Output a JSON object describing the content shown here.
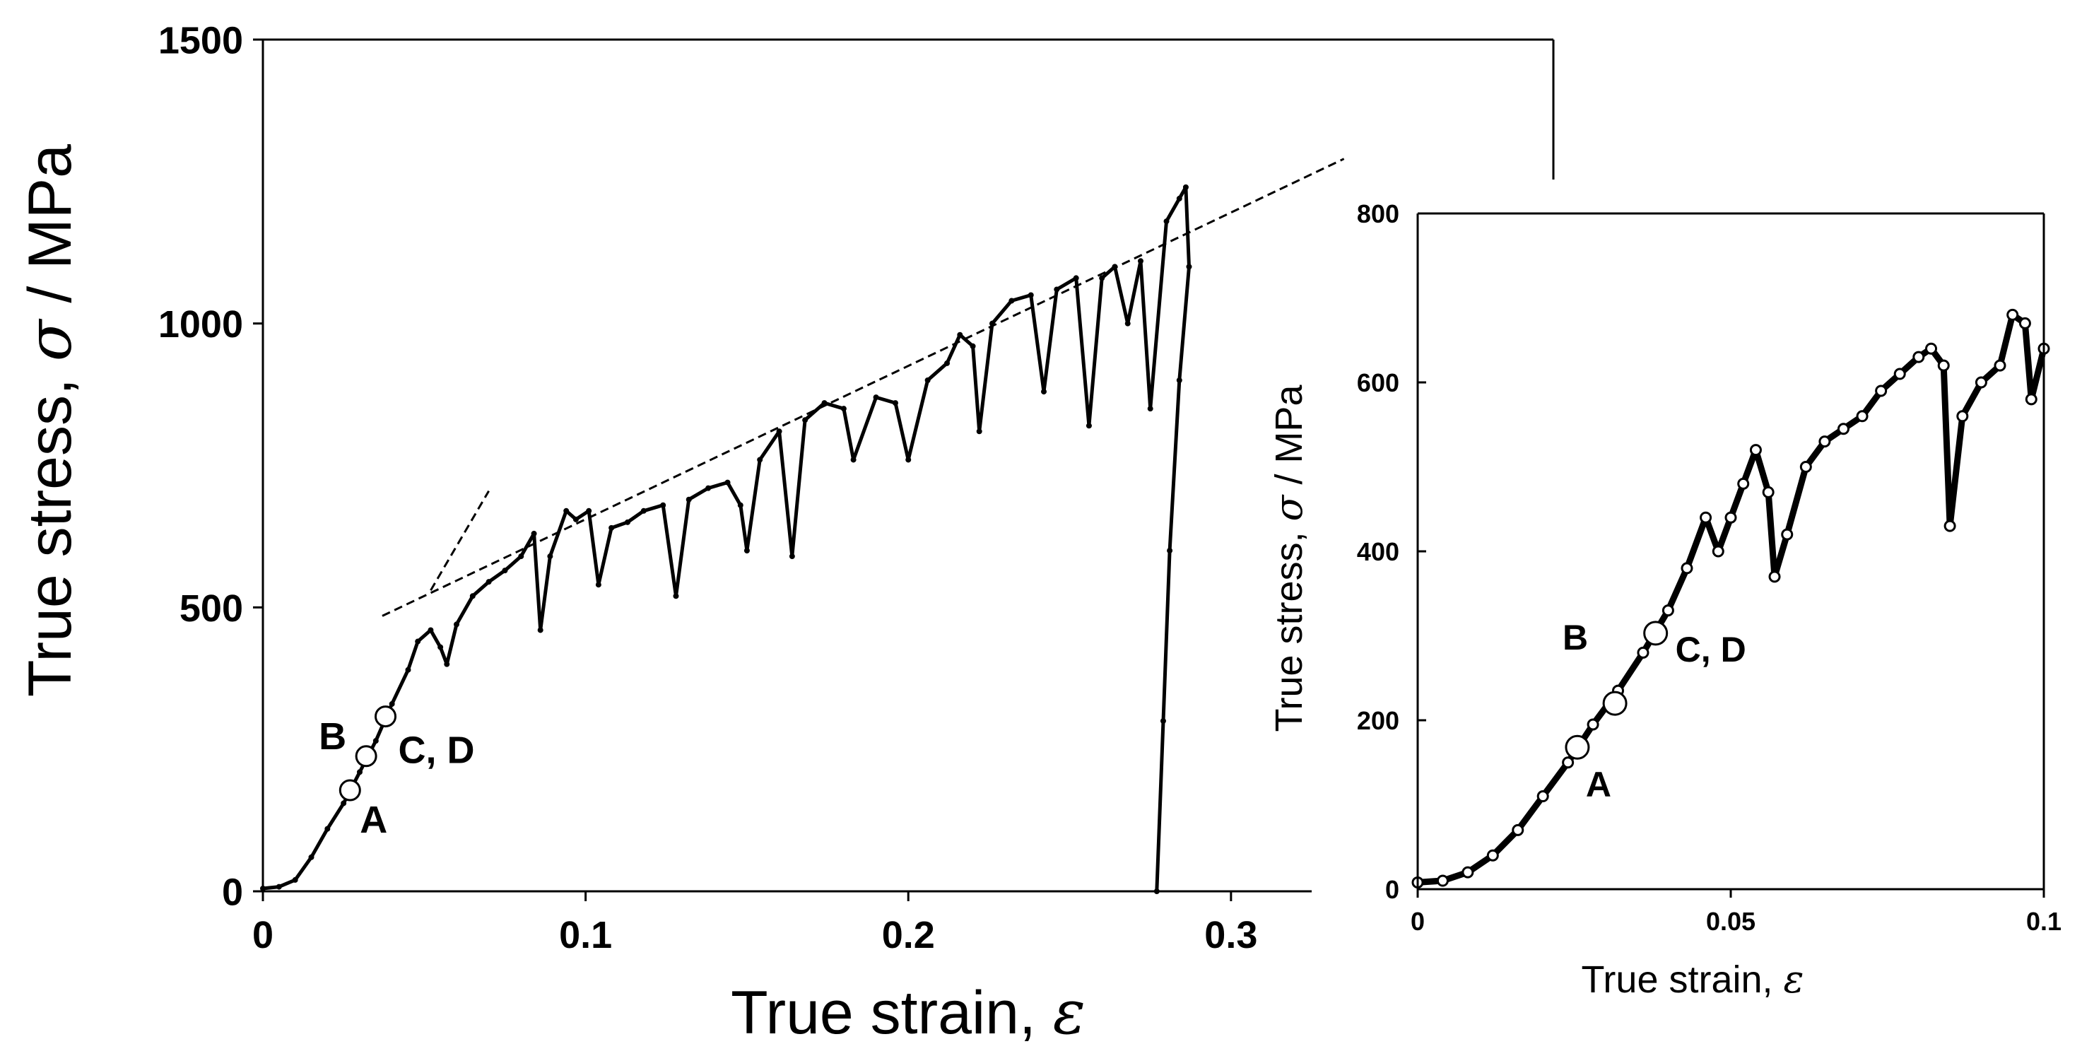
{
  "chart_data": [
    {
      "id": "main",
      "type": "scatter",
      "xlabel": "True strain, ",
      "xlabel_symbol": "ε",
      "ylabel": "True stress, ",
      "ylabel_symbol": "σ",
      "ylabel_unit": " / MPa",
      "xlim": [
        0,
        0.325
      ],
      "ylim": [
        0,
        1500
      ],
      "xticks": [
        0,
        0.1,
        0.2,
        0.3
      ],
      "xtick_labels": [
        "0",
        "0.1",
        "0.2",
        "0.3"
      ],
      "yticks": [
        0,
        500,
        1000,
        1500
      ],
      "ytick_labels": [
        "0",
        "500",
        "1000",
        "1500"
      ],
      "grid": false,
      "series": [
        {
          "values": [
            [
              0.0,
              5
            ],
            [
              0.005,
              8
            ],
            [
              0.01,
              20
            ],
            [
              0.015,
              60
            ],
            [
              0.02,
              110
            ],
            [
              0.025,
              155
            ],
            [
              0.03,
              210
            ],
            [
              0.035,
              265
            ],
            [
              0.04,
              330
            ],
            [
              0.045,
              390
            ],
            [
              0.048,
              440
            ],
            [
              0.052,
              460
            ],
            [
              0.055,
              430
            ],
            [
              0.057,
              400
            ],
            [
              0.06,
              470
            ],
            [
              0.065,
              520
            ],
            [
              0.07,
              545
            ],
            [
              0.075,
              565
            ],
            [
              0.08,
              590
            ],
            [
              0.084,
              630
            ],
            [
              0.086,
              460
            ],
            [
              0.089,
              590
            ],
            [
              0.094,
              670
            ],
            [
              0.097,
              655
            ],
            [
              0.101,
              670
            ],
            [
              0.104,
              540
            ],
            [
              0.108,
              640
            ],
            [
              0.113,
              650
            ],
            [
              0.118,
              670
            ],
            [
              0.124,
              680
            ],
            [
              0.128,
              520
            ],
            [
              0.132,
              690
            ],
            [
              0.138,
              710
            ],
            [
              0.144,
              720
            ],
            [
              0.148,
              680
            ],
            [
              0.15,
              600
            ],
            [
              0.154,
              760
            ],
            [
              0.16,
              810
            ],
            [
              0.164,
              590
            ],
            [
              0.168,
              830
            ],
            [
              0.174,
              860
            ],
            [
              0.18,
              850
            ],
            [
              0.183,
              760
            ],
            [
              0.19,
              870
            ],
            [
              0.196,
              860
            ],
            [
              0.2,
              760
            ],
            [
              0.206,
              900
            ],
            [
              0.212,
              930
            ],
            [
              0.216,
              980
            ],
            [
              0.22,
              960
            ],
            [
              0.222,
              810
            ],
            [
              0.226,
              1000
            ],
            [
              0.232,
              1040
            ],
            [
              0.238,
              1050
            ],
            [
              0.242,
              880
            ],
            [
              0.246,
              1060
            ],
            [
              0.252,
              1080
            ],
            [
              0.256,
              820
            ],
            [
              0.26,
              1080
            ],
            [
              0.264,
              1100
            ],
            [
              0.268,
              1000
            ],
            [
              0.272,
              1110
            ],
            [
              0.275,
              850
            ],
            [
              0.28,
              1180
            ],
            [
              0.284,
              1220
            ],
            [
              0.286,
              1240
            ],
            [
              0.287,
              1100
            ],
            [
              0.284,
              900
            ],
            [
              0.281,
              600
            ],
            [
              0.279,
              300
            ],
            [
              0.277,
              0
            ]
          ]
        }
      ],
      "fit_lines": [
        {
          "style": "dashed",
          "points": [
            [
              0.037,
              485
            ],
            [
              0.335,
              1290
            ]
          ]
        },
        {
          "style": "dashed",
          "points": [
            [
              0.052,
              530
            ],
            [
              0.07,
              705
            ]
          ]
        }
      ],
      "markers": [
        {
          "label": "A",
          "x": 0.027,
          "y": 178
        },
        {
          "label": "B",
          "x": 0.032,
          "y": 238
        },
        {
          "label": "C, D",
          "x": 0.038,
          "y": 308
        }
      ]
    },
    {
      "id": "inset",
      "type": "scatter",
      "xlabel": "True strain, ",
      "xlabel_symbol": "ε",
      "ylabel": "True stress, ",
      "ylabel_symbol": "σ",
      "ylabel_unit": " / MPa",
      "xlim": [
        0,
        0.1
      ],
      "ylim": [
        0,
        800
      ],
      "xticks": [
        0,
        0.05,
        0.1
      ],
      "xtick_labels": [
        "0",
        "0.05",
        "0.1"
      ],
      "yticks": [
        0,
        200,
        400,
        600,
        800
      ],
      "ytick_labels": [
        "0",
        "200",
        "400",
        "600",
        "800"
      ],
      "grid": false,
      "series": [
        {
          "values": [
            [
              0.0,
              8
            ],
            [
              0.004,
              10
            ],
            [
              0.008,
              20
            ],
            [
              0.012,
              40
            ],
            [
              0.016,
              70
            ],
            [
              0.02,
              110
            ],
            [
              0.024,
              150
            ],
            [
              0.028,
              195
            ],
            [
              0.032,
              235
            ],
            [
              0.036,
              280
            ],
            [
              0.04,
              330
            ],
            [
              0.043,
              380
            ],
            [
              0.046,
              440
            ],
            [
              0.048,
              400
            ],
            [
              0.05,
              440
            ],
            [
              0.052,
              480
            ],
            [
              0.054,
              520
            ],
            [
              0.056,
              470
            ],
            [
              0.057,
              370
            ],
            [
              0.059,
              420
            ],
            [
              0.062,
              500
            ],
            [
              0.065,
              530
            ],
            [
              0.068,
              545
            ],
            [
              0.071,
              560
            ],
            [
              0.074,
              590
            ],
            [
              0.077,
              610
            ],
            [
              0.08,
              630
            ],
            [
              0.082,
              640
            ],
            [
              0.084,
              620
            ],
            [
              0.085,
              430
            ],
            [
              0.087,
              560
            ],
            [
              0.09,
              600
            ],
            [
              0.093,
              620
            ],
            [
              0.095,
              680
            ],
            [
              0.097,
              670
            ],
            [
              0.098,
              580
            ],
            [
              0.1,
              640
            ]
          ]
        }
      ],
      "markers": [
        {
          "label": "A",
          "x": 0.0255,
          "y": 168
        },
        {
          "label": "B",
          "x": 0.0315,
          "y": 220
        },
        {
          "label": "C, D",
          "x": 0.038,
          "y": 303
        }
      ]
    }
  ]
}
